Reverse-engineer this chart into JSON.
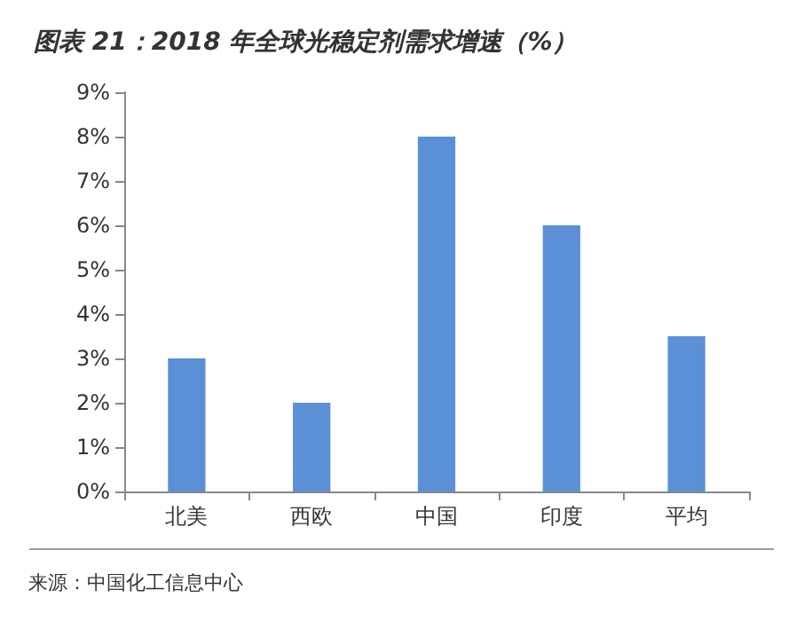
{
  "chart_data": {
    "type": "bar",
    "title": "图表 21：2018 年全球光稳定剂需求增速（%）",
    "categories": [
      "北美",
      "西欧",
      "中国",
      "印度",
      "平均"
    ],
    "values": [
      3,
      2,
      8,
      6,
      3.5
    ],
    "color": "#5b8fd6",
    "ylim": [
      0,
      9
    ],
    "yticks": [
      {
        "value": 0,
        "label": "0%"
      },
      {
        "value": 1,
        "label": "1%"
      },
      {
        "value": 2,
        "label": "2%"
      },
      {
        "value": 3,
        "label": "3%"
      },
      {
        "value": 4,
        "label": "4%"
      },
      {
        "value": 5,
        "label": "5%"
      },
      {
        "value": 6,
        "label": "6%"
      },
      {
        "value": 7,
        "label": "7%"
      },
      {
        "value": 8,
        "label": "8%"
      },
      {
        "value": 9,
        "label": "9%"
      }
    ],
    "grid": false,
    "annotations": [
      "来源：中国化工信息中心"
    ]
  }
}
